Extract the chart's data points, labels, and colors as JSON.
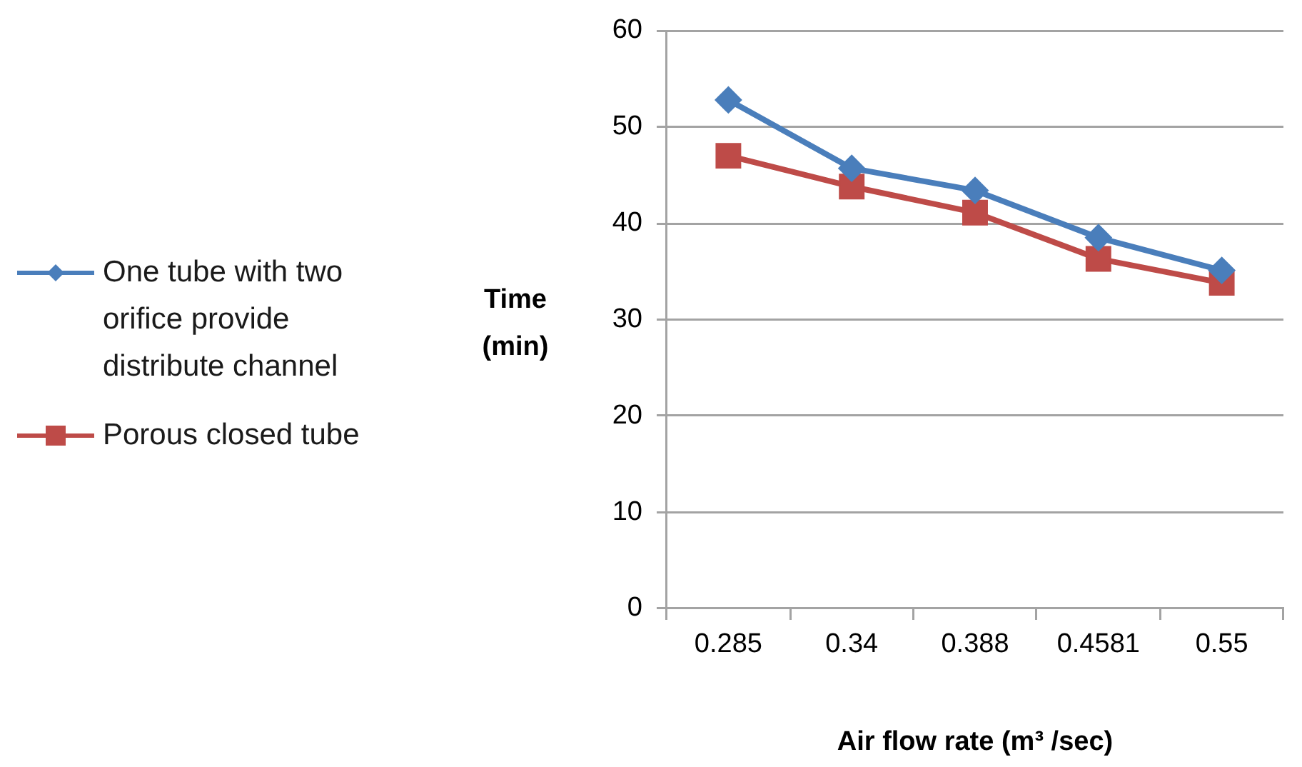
{
  "chart_data": {
    "type": "line",
    "categories": [
      "0.285",
      "0.34",
      "0.388",
      "0.4581",
      "0.55"
    ],
    "series": [
      {
        "name": "One tube with two orifice provide distribute channel",
        "color": "#4a7ebb",
        "marker": "diamond",
        "values": [
          52.8,
          45.7,
          43.4,
          38.5,
          35.1
        ]
      },
      {
        "name": "Porous closed tube",
        "color": "#be4b48",
        "marker": "square",
        "values": [
          47.0,
          43.8,
          41.1,
          36.3,
          33.8
        ]
      }
    ],
    "xlabel": "Air flow rate (m³ /sec)",
    "ylabel": "Time (min)",
    "ylim": [
      0,
      60
    ],
    "yticks": [
      0,
      10,
      20,
      30,
      40,
      50,
      60
    ],
    "grid": "y",
    "legend": "left",
    "line_style": "solid"
  }
}
